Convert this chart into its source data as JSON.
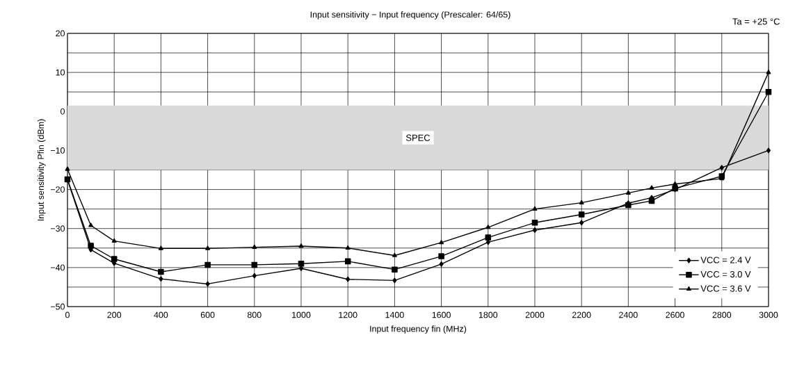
{
  "chart_data": {
    "type": "line",
    "title": "Input sensitivity − Input frequency (Prescaler: 64/65)",
    "xlabel": "Input frequency fin (MHz)",
    "ylabel": "Input sensitivity Pfin (dBm)",
    "annotations": [
      "Ta = +25 °C"
    ],
    "x": [
      0,
      100,
      200,
      400,
      600,
      800,
      1000,
      1200,
      1400,
      1600,
      1800,
      2000,
      2200,
      2400,
      2500,
      2600,
      2800,
      3000
    ],
    "series": [
      {
        "name": "VCC = 2.4 V",
        "color": "#000000",
        "marker": "diamond",
        "values": [
          -17.5,
          -35.4,
          -38.9,
          -42.9,
          -44.2,
          -42.1,
          -40.2,
          -43.0,
          -43.3,
          -39.1,
          -33.5,
          -30.4,
          -28.5,
          -23.5,
          -22.1,
          -20.0,
          -14.4,
          -10.0
        ]
      },
      {
        "name": "VCC = 3.0 V",
        "color": "#000000",
        "marker": "square",
        "values": [
          -17.4,
          -34.4,
          -37.8,
          -41.1,
          -39.3,
          -39.3,
          -39.0,
          -38.4,
          -40.5,
          -37.1,
          -32.3,
          -28.5,
          -26.4,
          -24.0,
          -22.9,
          -19.7,
          -16.6,
          5.0
        ]
      },
      {
        "name": "VCC = 3.6 V",
        "color": "#000000",
        "marker": "triangle",
        "values": [
          -14.8,
          -29.2,
          -33.2,
          -35.1,
          -35.1,
          -34.8,
          -34.5,
          -35.0,
          -36.9,
          -33.6,
          -29.7,
          -25.0,
          -23.4,
          -20.9,
          -19.6,
          -18.6,
          -17.2,
          10.0
        ]
      }
    ],
    "bands": [
      {
        "axis": "y",
        "from": -15,
        "to": 1.5,
        "label": "SPEC",
        "color": "#d9d9d9"
      }
    ],
    "xlim": [
      0,
      3000
    ],
    "ylim": [
      -50,
      20
    ],
    "xticks": [
      0,
      200,
      400,
      600,
      800,
      1000,
      1200,
      1400,
      1600,
      1800,
      2000,
      2200,
      2400,
      2600,
      2800,
      3000
    ],
    "yticks": [
      {
        "value": -50,
        "label": "−50"
      },
      {
        "value": -40,
        "label": "−40"
      },
      {
        "value": -30,
        "label": "−30"
      },
      {
        "value": -20,
        "label": "−20"
      },
      {
        "value": -10,
        "label": "−10"
      },
      0,
      10,
      20
    ],
    "grid": true,
    "legend": "bottom right",
    "line_style": "solid"
  }
}
